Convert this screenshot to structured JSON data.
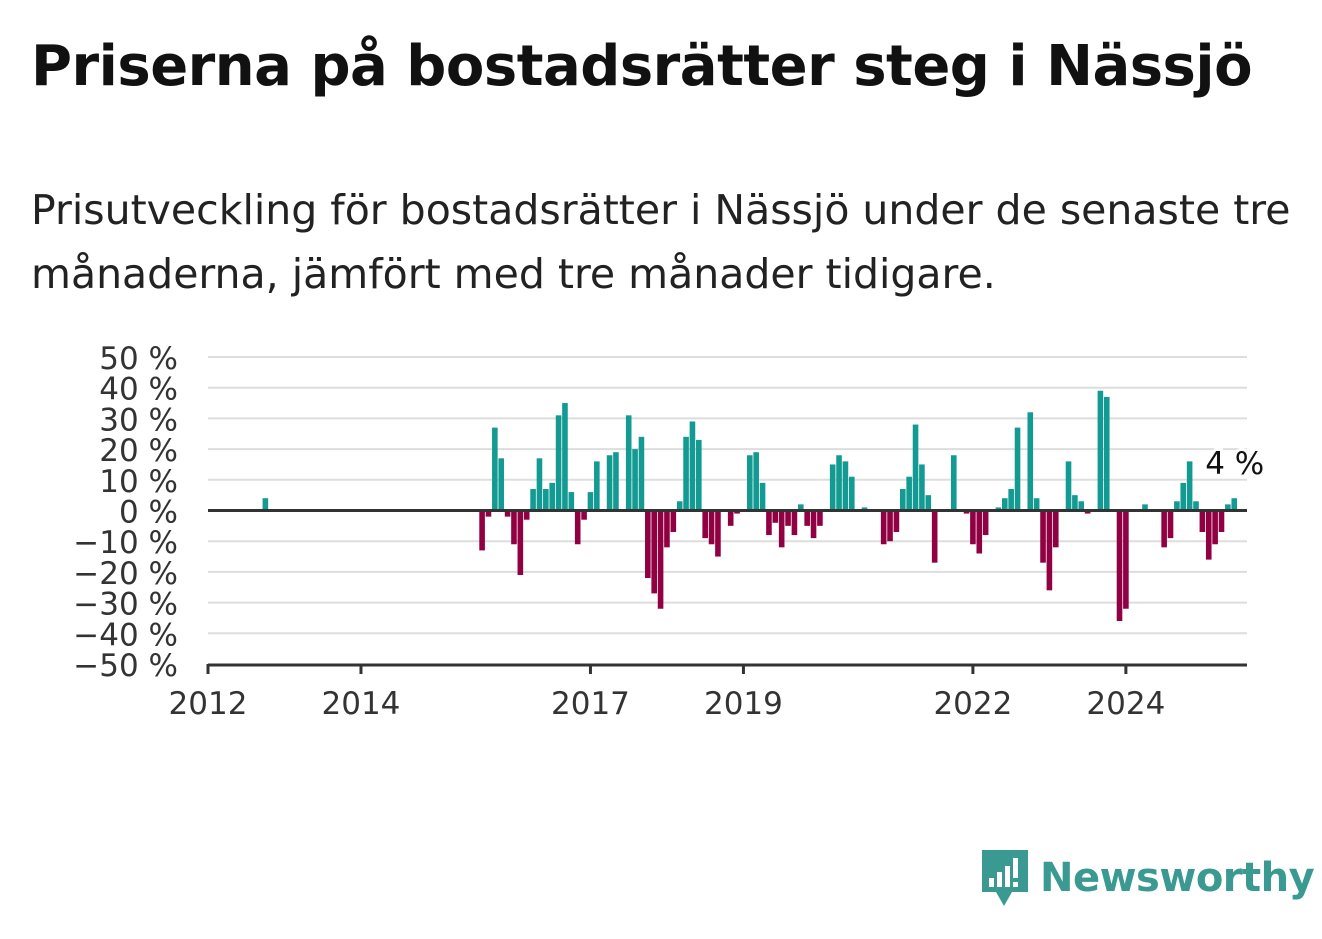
{
  "title": "Priserna på bostadsrätter steg i Nässjö",
  "subtitle": "Prisutveckling för bostadsrätter i Nässjö under de senaste tre månaderna, jämfört med tre månader tidigare.",
  "brand": {
    "name": "Newsworthy",
    "color": "#3a9a92",
    "icon": "newsworthy-logo-icon"
  },
  "colors": {
    "positive": "#139b93",
    "negative": "#910042",
    "grid": "#dddddd",
    "axis": "#333333",
    "text": "#333333"
  },
  "chart_data": {
    "type": "bar",
    "ylim": [
      -50,
      50
    ],
    "yticks": [
      {
        "value": 50,
        "label": "50 %"
      },
      {
        "value": 40,
        "label": "40 %"
      },
      {
        "value": 30,
        "label": "30 %"
      },
      {
        "value": 20,
        "label": "20 %"
      },
      {
        "value": 10,
        "label": "10 %"
      },
      {
        "value": 0,
        "label": "0 %"
      },
      {
        "value": -10,
        "label": "−10 %"
      },
      {
        "value": -20,
        "label": "−20 %"
      },
      {
        "value": -30,
        "label": "−30 %"
      },
      {
        "value": -40,
        "label": "−40 %"
      },
      {
        "value": -50,
        "label": "−50 %"
      }
    ],
    "xlim": [
      "2012-01",
      "2025-08"
    ],
    "xticks": [
      {
        "value": "2012-01",
        "label": "2012"
      },
      {
        "value": "2014-01",
        "label": "2014"
      },
      {
        "value": "2017-01",
        "label": "2017"
      },
      {
        "value": "2019-01",
        "label": "2019"
      },
      {
        "value": "2022-01",
        "label": "2022"
      },
      {
        "value": "2024-01",
        "label": "2024"
      }
    ],
    "grid": true,
    "last_value_label": "4 %",
    "bars": [
      {
        "x": "2012-10",
        "y": 4
      },
      {
        "x": "2015-08",
        "y": -13
      },
      {
        "x": "2015-09",
        "y": -2
      },
      {
        "x": "2015-10",
        "y": 27
      },
      {
        "x": "2015-11",
        "y": 17
      },
      {
        "x": "2015-12",
        "y": -2
      },
      {
        "x": "2016-01",
        "y": -11
      },
      {
        "x": "2016-02",
        "y": -21
      },
      {
        "x": "2016-03",
        "y": -3
      },
      {
        "x": "2016-04",
        "y": 7
      },
      {
        "x": "2016-05",
        "y": 17
      },
      {
        "x": "2016-06",
        "y": 7
      },
      {
        "x": "2016-07",
        "y": 9
      },
      {
        "x": "2016-08",
        "y": 31
      },
      {
        "x": "2016-09",
        "y": 35
      },
      {
        "x": "2016-10",
        "y": 6
      },
      {
        "x": "2016-11",
        "y": -11
      },
      {
        "x": "2016-12",
        "y": -3
      },
      {
        "x": "2017-01",
        "y": 6
      },
      {
        "x": "2017-02",
        "y": 16
      },
      {
        "x": "2017-03",
        "y": 0
      },
      {
        "x": "2017-04",
        "y": 18
      },
      {
        "x": "2017-05",
        "y": 19
      },
      {
        "x": "2017-06",
        "y": 0
      },
      {
        "x": "2017-07",
        "y": 31
      },
      {
        "x": "2017-08",
        "y": 20
      },
      {
        "x": "2017-09",
        "y": 24
      },
      {
        "x": "2017-10",
        "y": -22
      },
      {
        "x": "2017-11",
        "y": -27
      },
      {
        "x": "2017-12",
        "y": -32
      },
      {
        "x": "2018-01",
        "y": -12
      },
      {
        "x": "2018-02",
        "y": -7
      },
      {
        "x": "2018-03",
        "y": 3
      },
      {
        "x": "2018-04",
        "y": 24
      },
      {
        "x": "2018-05",
        "y": 29
      },
      {
        "x": "2018-06",
        "y": 23
      },
      {
        "x": "2018-07",
        "y": -9
      },
      {
        "x": "2018-08",
        "y": -11
      },
      {
        "x": "2018-09",
        "y": -15
      },
      {
        "x": "2018-10",
        "y": 0
      },
      {
        "x": "2018-11",
        "y": -5
      },
      {
        "x": "2018-12",
        "y": -1
      },
      {
        "x": "2019-01",
        "y": 0
      },
      {
        "x": "2019-02",
        "y": 18
      },
      {
        "x": "2019-03",
        "y": 19
      },
      {
        "x": "2019-04",
        "y": 9
      },
      {
        "x": "2019-05",
        "y": -8
      },
      {
        "x": "2019-06",
        "y": -4
      },
      {
        "x": "2019-07",
        "y": -12
      },
      {
        "x": "2019-08",
        "y": -5
      },
      {
        "x": "2019-09",
        "y": -8
      },
      {
        "x": "2019-10",
        "y": 2
      },
      {
        "x": "2019-11",
        "y": -5
      },
      {
        "x": "2019-12",
        "y": -9
      },
      {
        "x": "2020-01",
        "y": -5
      },
      {
        "x": "2020-02",
        "y": 0
      },
      {
        "x": "2020-03",
        "y": 15
      },
      {
        "x": "2020-04",
        "y": 18
      },
      {
        "x": "2020-05",
        "y": 16
      },
      {
        "x": "2020-06",
        "y": 11
      },
      {
        "x": "2020-07",
        "y": 0
      },
      {
        "x": "2020-08",
        "y": 1
      },
      {
        "x": "2020-09",
        "y": 0
      },
      {
        "x": "2020-10",
        "y": 0
      },
      {
        "x": "2020-11",
        "y": -11
      },
      {
        "x": "2020-12",
        "y": -10
      },
      {
        "x": "2021-01",
        "y": -7
      },
      {
        "x": "2021-02",
        "y": 7
      },
      {
        "x": "2021-03",
        "y": 11
      },
      {
        "x": "2021-04",
        "y": 28
      },
      {
        "x": "2021-05",
        "y": 15
      },
      {
        "x": "2021-06",
        "y": 5
      },
      {
        "x": "2021-07",
        "y": -17
      },
      {
        "x": "2021-08",
        "y": 0
      },
      {
        "x": "2021-09",
        "y": 0
      },
      {
        "x": "2021-10",
        "y": 18
      },
      {
        "x": "2021-11",
        "y": 0
      },
      {
        "x": "2021-12",
        "y": -1
      },
      {
        "x": "2022-01",
        "y": -11
      },
      {
        "x": "2022-02",
        "y": -14
      },
      {
        "x": "2022-03",
        "y": -8
      },
      {
        "x": "2022-04",
        "y": 0
      },
      {
        "x": "2022-05",
        "y": 1
      },
      {
        "x": "2022-06",
        "y": 4
      },
      {
        "x": "2022-07",
        "y": 7
      },
      {
        "x": "2022-08",
        "y": 27
      },
      {
        "x": "2022-09",
        "y": 0
      },
      {
        "x": "2022-10",
        "y": 32
      },
      {
        "x": "2022-11",
        "y": 4
      },
      {
        "x": "2022-12",
        "y": -17
      },
      {
        "x": "2023-01",
        "y": -26
      },
      {
        "x": "2023-02",
        "y": -12
      },
      {
        "x": "2023-03",
        "y": 0
      },
      {
        "x": "2023-04",
        "y": 16
      },
      {
        "x": "2023-05",
        "y": 5
      },
      {
        "x": "2023-06",
        "y": 3
      },
      {
        "x": "2023-07",
        "y": -1
      },
      {
        "x": "2023-08",
        "y": 0
      },
      {
        "x": "2023-09",
        "y": 39
      },
      {
        "x": "2023-10",
        "y": 37
      },
      {
        "x": "2023-11",
        "y": 0
      },
      {
        "x": "2023-12",
        "y": -36
      },
      {
        "x": "2024-01",
        "y": -32
      },
      {
        "x": "2024-02",
        "y": 0
      },
      {
        "x": "2024-03",
        "y": 0
      },
      {
        "x": "2024-04",
        "y": 2
      },
      {
        "x": "2024-05",
        "y": 0
      },
      {
        "x": "2024-06",
        "y": 0
      },
      {
        "x": "2024-07",
        "y": -12
      },
      {
        "x": "2024-08",
        "y": -9
      },
      {
        "x": "2024-09",
        "y": 3
      },
      {
        "x": "2024-10",
        "y": 9
      },
      {
        "x": "2024-11",
        "y": 16
      },
      {
        "x": "2024-12",
        "y": 3
      },
      {
        "x": "2025-01",
        "y": -7
      },
      {
        "x": "2025-02",
        "y": -16
      },
      {
        "x": "2025-03",
        "y": -11
      },
      {
        "x": "2025-04",
        "y": -7
      },
      {
        "x": "2025-05",
        "y": 2
      },
      {
        "x": "2025-06",
        "y": 4
      }
    ]
  }
}
